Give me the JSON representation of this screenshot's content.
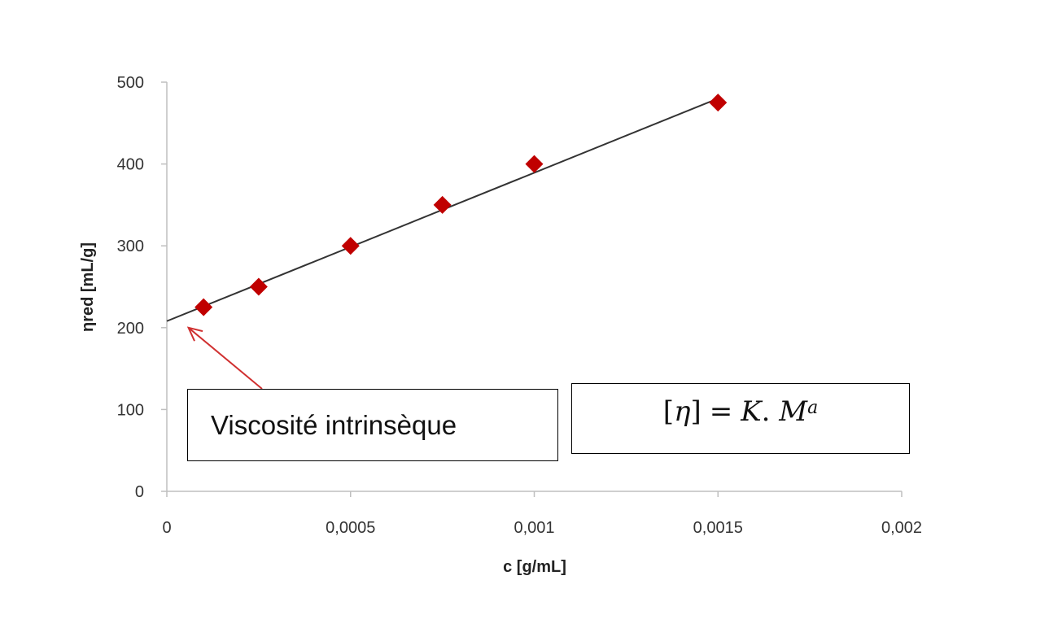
{
  "chart_data": {
    "type": "scatter",
    "title": "",
    "xlabel": "c [g/mL]",
    "ylabel": "ηred [mL/g]",
    "xlim": [
      0,
      0.002
    ],
    "ylim": [
      0,
      500
    ],
    "x_ticks": [
      0,
      0.0005,
      0.001,
      0.0015,
      0.002
    ],
    "x_tick_labels": [
      "0",
      "0,0005",
      "0,001",
      "0,0015",
      "0,002"
    ],
    "y_ticks": [
      0,
      100,
      200,
      300,
      400,
      500
    ],
    "y_tick_labels": [
      "0",
      "100",
      "200",
      "300",
      "400",
      "500"
    ],
    "grid": false,
    "marker": "diamond",
    "series": [
      {
        "points": [
          {
            "x": 0.0001,
            "y": 225
          },
          {
            "x": 0.00025,
            "y": 250
          },
          {
            "x": 0.0005,
            "y": 300
          },
          {
            "x": 0.00075,
            "y": 350
          },
          {
            "x": 0.001,
            "y": 400
          },
          {
            "x": 0.0015,
            "y": 475
          }
        ]
      }
    ],
    "trendline": {
      "x_start": 0,
      "y_start": 208,
      "x_end": 0.0015,
      "y_end": 480
    },
    "annotation_arrow_target": {
      "x": 5e-05,
      "y": 200
    },
    "colors": {
      "marker": "#c00000",
      "trendline": "#333333",
      "axis": "#bfbfbf",
      "arrow": "#d03030"
    }
  },
  "annotations": {
    "viscosite_label": "Viscosité intrinsèque",
    "formula": {
      "lhs_open": "[",
      "lhs_symbol": "η",
      "lhs_close": "]",
      "equals": "=",
      "k": "K",
      "dot": ".",
      "m": "M",
      "exponent": "a"
    }
  }
}
